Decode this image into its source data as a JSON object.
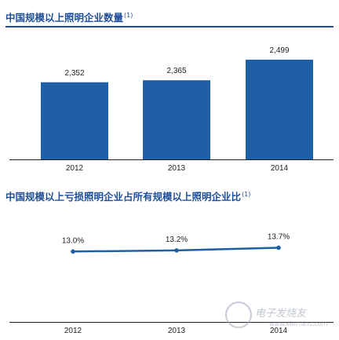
{
  "colors": {
    "accent": "#1f4f9a",
    "bar": "#1f5fa6",
    "line": "#1f5fa6",
    "axis": "#222222"
  },
  "chart_data": [
    {
      "type": "bar",
      "title": "中国规模以上照明企业数量",
      "title_note": "(1)",
      "categories": [
        "2012",
        "2013",
        "2014"
      ],
      "values": [
        2352,
        2365,
        2499
      ],
      "value_labels": [
        "2,352",
        "2,365",
        "2,499"
      ],
      "xlabel": "",
      "ylabel": "",
      "ylim": [
        1850,
        2550
      ],
      "grid": false,
      "color": "#1f5fa6"
    },
    {
      "type": "line",
      "title": "中国规模以上亏损照明企业占所有规模以上照明企业比",
      "title_note": "(1)",
      "categories": [
        "2012",
        "2013",
        "2014"
      ],
      "values": [
        13.0,
        13.2,
        13.7
      ],
      "value_labels": [
        "13.0%",
        "13.2%",
        "13.7%"
      ],
      "xlabel": "",
      "ylabel": "",
      "ylim": [
        0,
        20
      ],
      "grid": false,
      "color": "#1f5fa6"
    }
  ],
  "watermark": {
    "text": "电子发烧友",
    "url": "www.elecfans.com"
  }
}
